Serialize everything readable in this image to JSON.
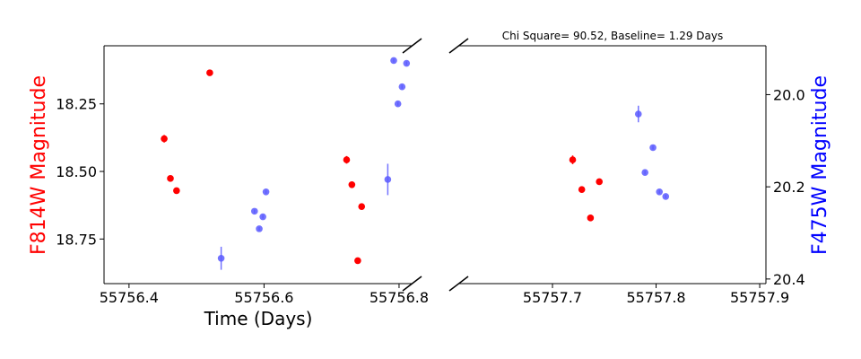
{
  "chart_data": {
    "type": "scatter",
    "title": "Chi Square= 90.52, Baseline= 1.29 Days",
    "xlabel": "Time (Days)",
    "ylabel_left": "F814W Magnitude",
    "ylabel_right": "F475W Magnitude",
    "broken_x_axis": true,
    "grid": false,
    "left_panel": {
      "xlim": [
        55756.363,
        55756.82
      ],
      "ylim_left": [
        18.915,
        18.035
      ],
      "ylim_right": [
        20.41,
        19.894
      ],
      "x_ticks": [
        55756.4,
        55756.6,
        55756.8
      ],
      "x_tick_labels": [
        "55756.4",
        "55756.6",
        "55756.8"
      ],
      "y_ticks_left": [
        18.25,
        18.5,
        18.75
      ],
      "y_tick_labels_left": [
        "18.25",
        "18.50",
        "18.75"
      ]
    },
    "right_panel": {
      "xlim": [
        55757.61,
        55757.906
      ],
      "ylim_left": [
        18.915,
        18.035
      ],
      "ylim_right": [
        20.41,
        19.894
      ],
      "x_ticks": [
        55757.7,
        55757.8,
        55757.9
      ],
      "x_tick_labels": [
        "55757.7",
        "55757.8",
        "55757.9"
      ],
      "y_ticks_right": [
        20.0,
        20.2,
        20.4
      ],
      "y_tick_labels_right": [
        "20.0",
        "20.2",
        "20.4"
      ]
    },
    "series": [
      {
        "name": "F814W",
        "axis": "left",
        "color": "#ff0000",
        "points": [
          {
            "x": 55756.4521,
            "y": 18.379,
            "err": 0.014
          },
          {
            "x": 55756.4613,
            "y": 18.526,
            "err": 0.006
          },
          {
            "x": 55756.4704,
            "y": 18.571,
            "err": 0.006
          },
          {
            "x": 55756.5196,
            "y": 18.135,
            "err": 0.006
          },
          {
            "x": 55756.7223,
            "y": 18.457,
            "err": 0.014
          },
          {
            "x": 55756.7301,
            "y": 18.549,
            "err": 0.006
          },
          {
            "x": 55756.7388,
            "y": 18.83,
            "err": 0.006
          },
          {
            "x": 55756.7446,
            "y": 18.63,
            "err": 0.006
          },
          {
            "x": 55757.7195,
            "y": 18.457,
            "err": 0.016
          },
          {
            "x": 55757.7283,
            "y": 18.567,
            "err": 0.006
          },
          {
            "x": 55757.7367,
            "y": 18.672,
            "err": 0.006
          },
          {
            "x": 55757.7452,
            "y": 18.538,
            "err": 0.006
          }
        ]
      },
      {
        "name": "F475W",
        "axis": "right",
        "color": "#5b5bff",
        "points": [
          {
            "x": 55756.5365,
            "y": 20.355,
            "err": 0.025
          },
          {
            "x": 55756.5859,
            "y": 20.253,
            "err": 0.004
          },
          {
            "x": 55756.5929,
            "y": 20.291,
            "err": 0.004
          },
          {
            "x": 55756.5983,
            "y": 20.265,
            "err": 0.004
          },
          {
            "x": 55756.6029,
            "y": 20.211,
            "err": 0.004
          },
          {
            "x": 55756.7833,
            "y": 20.184,
            "err": 0.034
          },
          {
            "x": 55756.7921,
            "y": 19.926,
            "err": 0.004
          },
          {
            "x": 55756.7983,
            "y": 20.02,
            "err": 0.004
          },
          {
            "x": 55756.8045,
            "y": 19.983,
            "err": 0.004
          },
          {
            "x": 55756.8111,
            "y": 19.932,
            "err": 0.004
          },
          {
            "x": 55757.7829,
            "y": 20.042,
            "err": 0.018
          },
          {
            "x": 55757.7893,
            "y": 20.169,
            "err": 0.004
          },
          {
            "x": 55757.797,
            "y": 20.115,
            "err": 0.004
          },
          {
            "x": 55757.8032,
            "y": 20.211,
            "err": 0.004
          },
          {
            "x": 55757.8093,
            "y": 20.221,
            "err": 0.004
          }
        ]
      }
    ]
  }
}
